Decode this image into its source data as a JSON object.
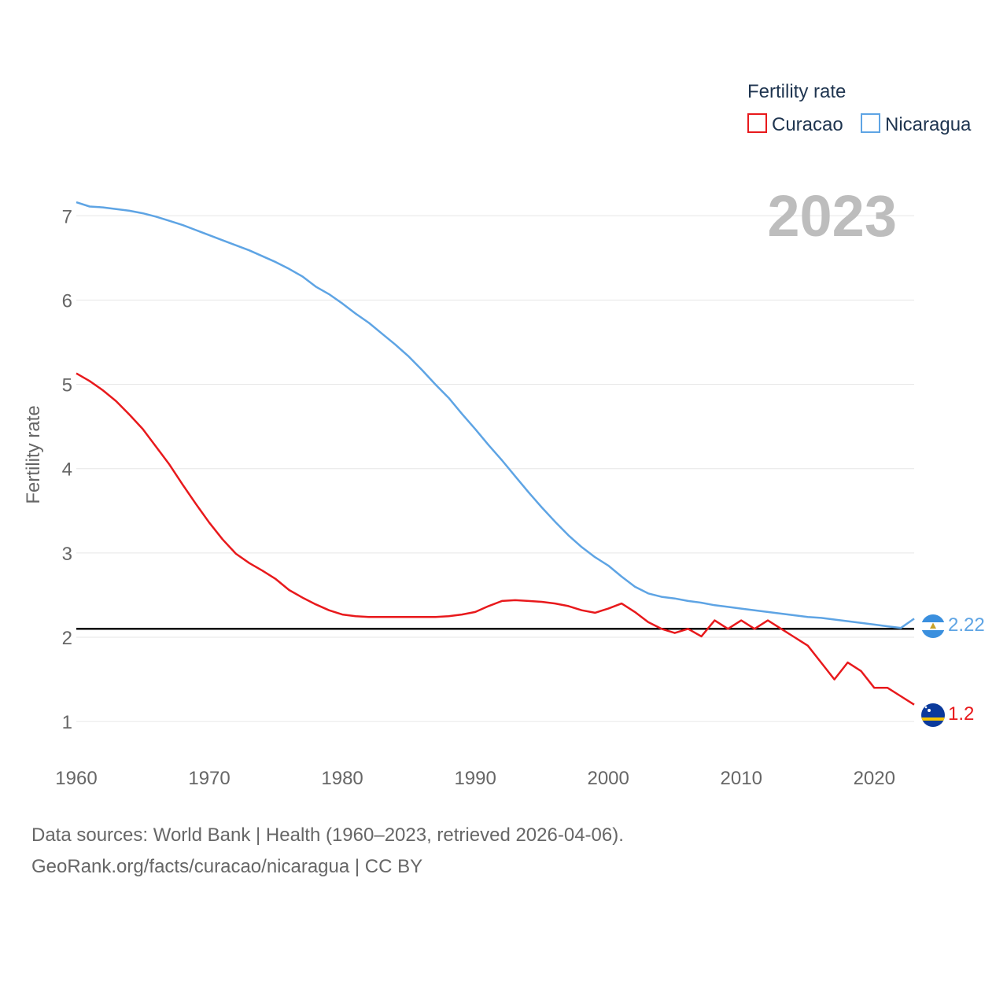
{
  "chart_data": {
    "type": "line",
    "legend_title": "Fertility rate",
    "year_label": "2023",
    "ylabel": "Fertility rate",
    "xlabel": "",
    "xlim": [
      1960,
      2023
    ],
    "ylim": [
      0.6,
      7.6
    ],
    "x_ticks": [
      "1960",
      "1970",
      "1980",
      "1990",
      "2000",
      "2010",
      "2020"
    ],
    "y_ticks": [
      "1",
      "2",
      "3",
      "4",
      "5",
      "6",
      "7"
    ],
    "reference_line": 2.1,
    "series": [
      {
        "name": "Curacao",
        "color": "#e8191c",
        "flag": "curacao-flag",
        "end_label": "1.2",
        "x": [
          1960,
          1961,
          1962,
          1963,
          1964,
          1965,
          1966,
          1967,
          1968,
          1969,
          1970,
          1971,
          1972,
          1973,
          1974,
          1975,
          1976,
          1977,
          1978,
          1979,
          1980,
          1981,
          1982,
          1983,
          1984,
          1985,
          1986,
          1987,
          1988,
          1989,
          1990,
          1991,
          1992,
          1993,
          1994,
          1995,
          1996,
          1997,
          1998,
          1999,
          2000,
          2001,
          2002,
          2003,
          2004,
          2005,
          2006,
          2007,
          2008,
          2009,
          2010,
          2011,
          2012,
          2013,
          2014,
          2015,
          2016,
          2017,
          2018,
          2019,
          2020,
          2021,
          2022,
          2023
        ],
        "values": [
          5.13,
          5.04,
          4.93,
          4.8,
          4.64,
          4.47,
          4.26,
          4.05,
          3.81,
          3.58,
          3.36,
          3.16,
          2.99,
          2.88,
          2.79,
          2.69,
          2.56,
          2.47,
          2.39,
          2.32,
          2.27,
          2.25,
          2.24,
          2.24,
          2.24,
          2.24,
          2.24,
          2.24,
          2.25,
          2.27,
          2.3,
          2.37,
          2.43,
          2.44,
          2.43,
          2.42,
          2.4,
          2.37,
          2.32,
          2.29,
          2.34,
          2.4,
          2.3,
          2.18,
          2.1,
          2.05,
          2.1,
          2.01,
          2.2,
          2.1,
          2.2,
          2.1,
          2.2,
          2.1,
          2.0,
          1.9,
          1.7,
          1.5,
          1.7,
          1.6,
          1.4,
          1.4,
          1.3,
          1.2
        ]
      },
      {
        "name": "Nicaragua",
        "color": "#5ea4e4",
        "flag": "nicaragua-flag",
        "end_label": "2.22",
        "x": [
          1960,
          1961,
          1962,
          1963,
          1964,
          1965,
          1966,
          1967,
          1968,
          1969,
          1970,
          1971,
          1972,
          1973,
          1974,
          1975,
          1976,
          1977,
          1978,
          1979,
          1980,
          1981,
          1982,
          1983,
          1984,
          1985,
          1986,
          1987,
          1988,
          1989,
          1990,
          1991,
          1992,
          1993,
          1994,
          1995,
          1996,
          1997,
          1998,
          1999,
          2000,
          2001,
          2002,
          2003,
          2004,
          2005,
          2006,
          2007,
          2008,
          2009,
          2010,
          2011,
          2012,
          2013,
          2014,
          2015,
          2016,
          2017,
          2018,
          2019,
          2020,
          2021,
          2022,
          2023
        ],
        "values": [
          7.16,
          7.11,
          7.1,
          7.08,
          7.06,
          7.03,
          6.99,
          6.94,
          6.89,
          6.83,
          6.77,
          6.71,
          6.65,
          6.59,
          6.52,
          6.45,
          6.37,
          6.28,
          6.16,
          6.07,
          5.96,
          5.84,
          5.73,
          5.6,
          5.47,
          5.33,
          5.17,
          5.0,
          4.84,
          4.65,
          4.47,
          4.28,
          4.1,
          3.91,
          3.72,
          3.54,
          3.37,
          3.21,
          3.07,
          2.95,
          2.85,
          2.72,
          2.6,
          2.52,
          2.48,
          2.46,
          2.43,
          2.41,
          2.38,
          2.36,
          2.34,
          2.32,
          2.3,
          2.28,
          2.26,
          2.24,
          2.23,
          2.21,
          2.19,
          2.17,
          2.15,
          2.13,
          2.11,
          2.22
        ]
      }
    ]
  },
  "footer": {
    "line1": "Data sources: World Bank | Health (1960–2023, retrieved 2026-04-06).",
    "line2": "GeoRank.org/facts/curacao/nicaragua | CC BY"
  }
}
